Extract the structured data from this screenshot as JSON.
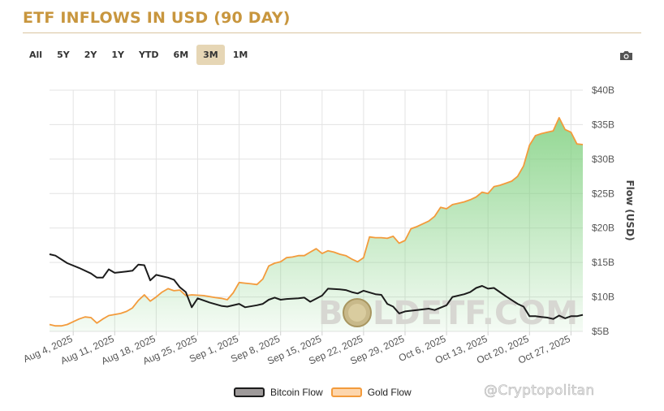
{
  "title": "ETF INFLOWS IN USD (90 DAY)",
  "range_buttons": [
    "All",
    "5Y",
    "2Y",
    "1Y",
    "YTD",
    "6M",
    "3M",
    "1M"
  ],
  "active_range": "3M",
  "watermark": {
    "prefix": "B",
    "suffix": "LDETF.COM"
  },
  "credit": "@Cryptopolitan",
  "colors": {
    "title": "#c8963e",
    "gold": "#f39b3c",
    "bitcoin": "#1c1c1c",
    "fill": "#8fd78f",
    "active_button": "#e6d6b5"
  },
  "icons": {
    "camera": "camera-icon",
    "coin": "gold-coin-icon"
  },
  "chart_data": {
    "type": "line",
    "ylabel": "Flow (USD)",
    "ylim": [
      5,
      40
    ],
    "y_ticks": [
      "$5B",
      "$10B",
      "$15B",
      "$20B",
      "$25B",
      "$30B",
      "$35B",
      "$40B"
    ],
    "y_tick_values": [
      5,
      10,
      15,
      20,
      25,
      30,
      35,
      40
    ],
    "x_ticks": [
      "Aug 4, 2025",
      "Aug 11, 2025",
      "Aug 18, 2025",
      "Aug 25, 2025",
      "Sep 1, 2025",
      "Sep 8, 2025",
      "Sep 15, 2025",
      "Sep 22, 2025",
      "Sep 29, 2025",
      "Oct 6, 2025",
      "Oct 13, 2025",
      "Oct 20, 2025",
      "Oct 27, 2025"
    ],
    "x_tick_days": [
      4,
      11,
      18,
      25,
      32,
      39,
      46,
      53,
      60,
      67,
      74,
      81,
      88
    ],
    "x_range_days": [
      0,
      90
    ],
    "x_day_origin": "Aug 0, 2025",
    "grid": true,
    "legend_position": "bottom",
    "series": [
      {
        "name": "Bitcoin Flow",
        "color": "#1c1c1c",
        "points": [
          [
            0,
            16.2
          ],
          [
            1,
            16.0
          ],
          [
            3,
            14.9
          ],
          [
            5,
            14.2
          ],
          [
            7,
            13.4
          ],
          [
            8,
            12.8
          ],
          [
            9,
            12.8
          ],
          [
            10,
            14.0
          ],
          [
            11,
            13.5
          ],
          [
            13,
            13.7
          ],
          [
            14,
            13.8
          ],
          [
            15,
            14.7
          ],
          [
            16,
            14.6
          ],
          [
            17,
            12.4
          ],
          [
            18,
            13.2
          ],
          [
            20,
            12.8
          ],
          [
            21,
            12.5
          ],
          [
            22,
            11.4
          ],
          [
            23,
            10.7
          ],
          [
            24,
            8.5
          ],
          [
            25,
            9.8
          ],
          [
            27,
            9.2
          ],
          [
            29,
            8.7
          ],
          [
            30,
            8.6
          ],
          [
            32,
            9.0
          ],
          [
            33,
            8.5
          ],
          [
            35,
            8.8
          ],
          [
            36,
            9.0
          ],
          [
            37,
            9.6
          ],
          [
            38,
            9.9
          ],
          [
            39,
            9.6
          ],
          [
            40,
            9.7
          ],
          [
            42,
            9.8
          ],
          [
            43,
            9.9
          ],
          [
            44,
            9.3
          ],
          [
            46,
            10.2
          ],
          [
            47,
            11.2
          ],
          [
            49,
            11.1
          ],
          [
            50,
            11.0
          ],
          [
            51,
            10.7
          ],
          [
            52,
            10.5
          ],
          [
            53,
            10.9
          ],
          [
            55,
            10.4
          ],
          [
            56,
            10.3
          ],
          [
            57,
            9.0
          ],
          [
            58,
            8.6
          ],
          [
            59,
            7.6
          ],
          [
            60,
            7.9
          ],
          [
            62,
            8.1
          ],
          [
            64,
            8.3
          ],
          [
            65,
            8.1
          ],
          [
            67,
            8.8
          ],
          [
            68,
            10.0
          ],
          [
            70,
            10.4
          ],
          [
            71,
            10.7
          ],
          [
            72,
            11.3
          ],
          [
            73,
            11.6
          ],
          [
            74,
            11.2
          ],
          [
            75,
            11.3
          ],
          [
            77,
            10.1
          ],
          [
            79,
            9.0
          ],
          [
            80,
            8.6
          ],
          [
            81,
            7.2
          ],
          [
            82,
            7.2
          ],
          [
            83,
            7.1
          ],
          [
            84,
            7.0
          ],
          [
            85,
            6.8
          ],
          [
            86,
            7.3
          ],
          [
            87,
            6.9
          ],
          [
            88,
            7.2
          ],
          [
            89,
            7.2
          ],
          [
            90,
            7.4
          ],
          [
            92,
            7.4
          ],
          [
            93,
            7.5
          ]
        ]
      },
      {
        "name": "Gold Flow",
        "color": "#f39b3c",
        "points": [
          [
            0,
            6.0
          ],
          [
            1,
            5.8
          ],
          [
            2,
            5.8
          ],
          [
            3,
            6.0
          ],
          [
            4,
            6.4
          ],
          [
            5,
            6.8
          ],
          [
            6,
            7.1
          ],
          [
            7,
            7.0
          ],
          [
            8,
            6.2
          ],
          [
            9,
            6.8
          ],
          [
            10,
            7.3
          ],
          [
            12,
            7.6
          ],
          [
            13,
            7.9
          ],
          [
            14,
            8.4
          ],
          [
            15,
            9.5
          ],
          [
            16,
            10.3
          ],
          [
            17,
            9.4
          ],
          [
            18,
            10.0
          ],
          [
            19,
            10.7
          ],
          [
            20,
            11.2
          ],
          [
            21,
            10.9
          ],
          [
            22,
            11.0
          ],
          [
            23,
            10.2
          ],
          [
            24,
            10.3
          ],
          [
            26,
            10.2
          ],
          [
            28,
            9.9
          ],
          [
            29,
            9.8
          ],
          [
            30,
            9.6
          ],
          [
            31,
            10.6
          ],
          [
            32,
            12.1
          ],
          [
            33,
            12.0
          ],
          [
            34,
            11.9
          ],
          [
            35,
            11.8
          ],
          [
            36,
            12.6
          ],
          [
            37,
            14.5
          ],
          [
            38,
            14.9
          ],
          [
            39,
            15.1
          ],
          [
            40,
            15.7
          ],
          [
            41,
            15.8
          ],
          [
            42,
            16.0
          ],
          [
            43,
            16.0
          ],
          [
            44,
            16.5
          ],
          [
            45,
            17.0
          ],
          [
            46,
            16.3
          ],
          [
            47,
            16.7
          ],
          [
            48,
            16.5
          ],
          [
            49,
            16.2
          ],
          [
            50,
            16.0
          ],
          [
            51,
            15.5
          ],
          [
            52,
            15.1
          ],
          [
            53,
            15.7
          ],
          [
            54,
            18.7
          ],
          [
            55,
            18.6
          ],
          [
            56,
            18.6
          ],
          [
            57,
            18.5
          ],
          [
            58,
            18.8
          ],
          [
            59,
            17.8
          ],
          [
            60,
            18.2
          ],
          [
            61,
            19.9
          ],
          [
            62,
            20.2
          ],
          [
            63,
            20.6
          ],
          [
            64,
            21.0
          ],
          [
            65,
            21.7
          ],
          [
            66,
            23.0
          ],
          [
            67,
            22.8
          ],
          [
            68,
            23.4
          ],
          [
            69,
            23.6
          ],
          [
            70,
            23.8
          ],
          [
            71,
            24.1
          ],
          [
            72,
            24.5
          ],
          [
            73,
            25.2
          ],
          [
            74,
            25.0
          ],
          [
            75,
            26.0
          ],
          [
            76,
            26.2
          ],
          [
            77,
            26.5
          ],
          [
            78,
            26.8
          ],
          [
            79,
            27.5
          ],
          [
            80,
            29.0
          ],
          [
            81,
            32.0
          ],
          [
            82,
            33.4
          ],
          [
            83,
            33.7
          ],
          [
            84,
            33.9
          ],
          [
            85,
            34.1
          ],
          [
            86,
            36.0
          ],
          [
            87,
            34.3
          ],
          [
            88,
            33.9
          ],
          [
            89,
            32.2
          ],
          [
            90,
            32.1
          ],
          [
            91,
            32.0
          ],
          [
            92,
            31.9
          ],
          [
            93,
            30.9
          ]
        ]
      }
    ]
  }
}
